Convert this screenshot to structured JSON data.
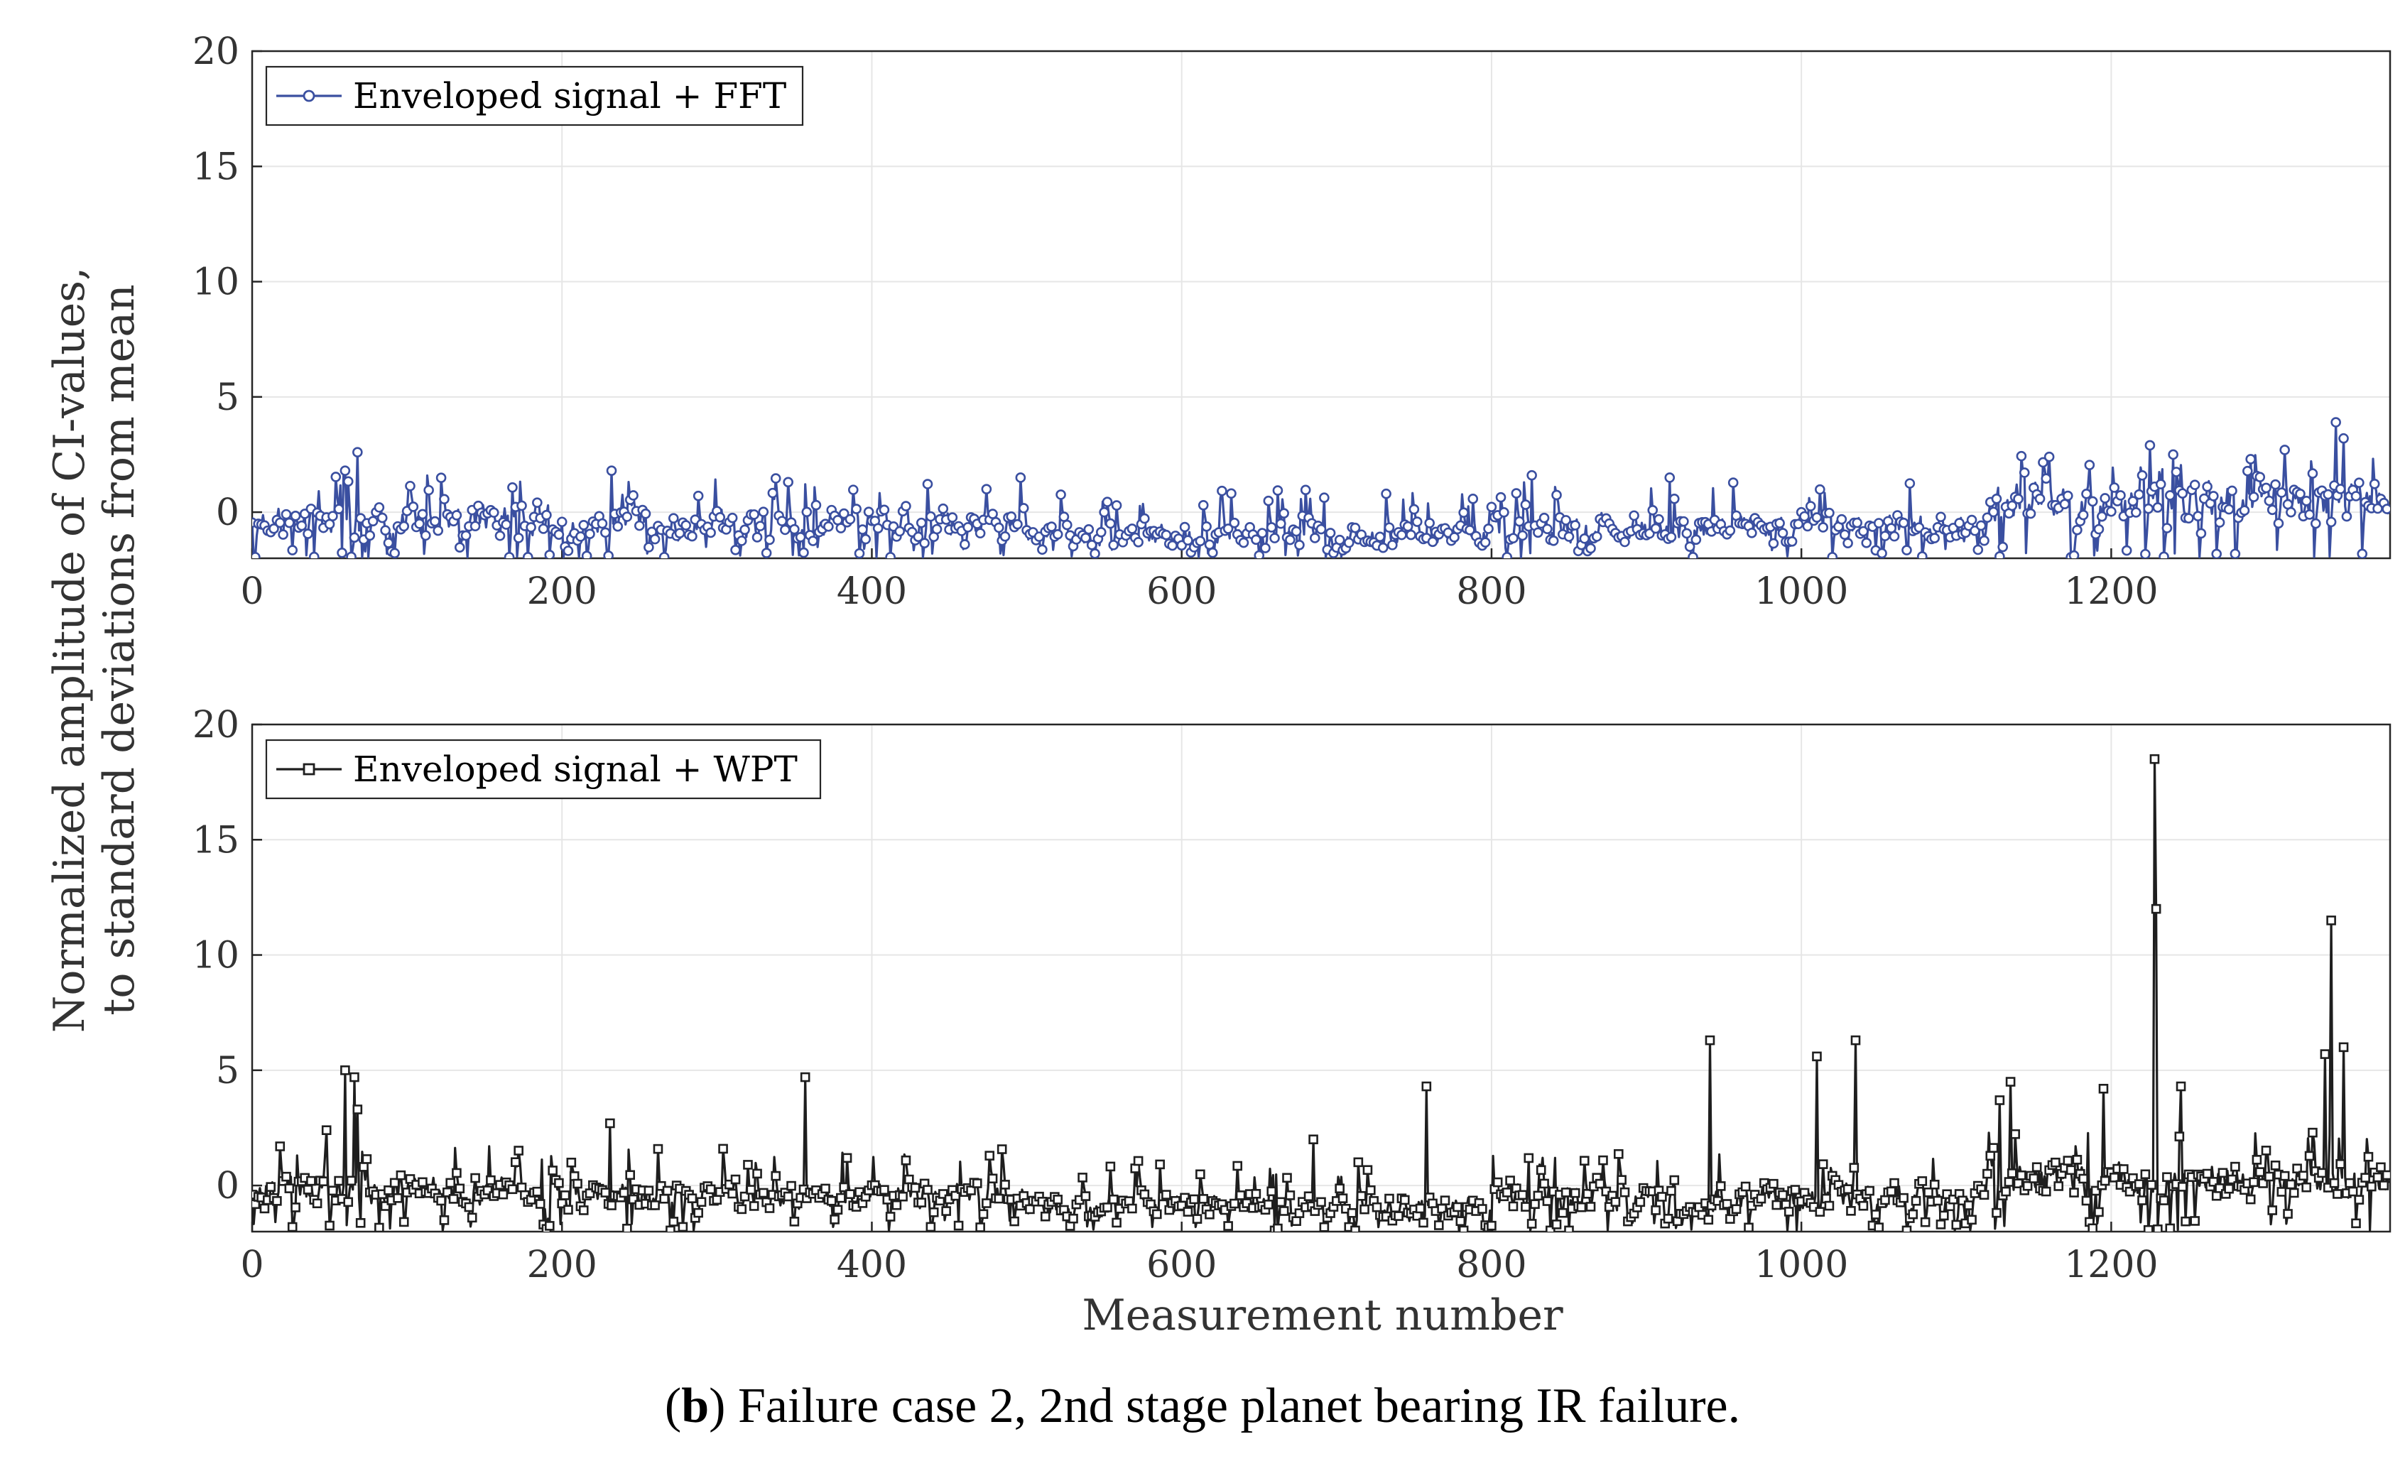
{
  "figure": {
    "ylabel_line1": "Normalized amplitude of CI-values,",
    "ylabel_line2": "to standard deviations from mean",
    "xlabel": "Measurement number",
    "caption_letter": "b",
    "caption_open": "(",
    "caption_rest": ") Failure case 2, 2nd stage planet bearing IR failure."
  },
  "chart_data": [
    {
      "type": "line",
      "series_name": "Enveloped signal + FFT",
      "color": "#3a4fa0",
      "marker": "circle",
      "xlim": [
        0,
        1380
      ],
      "ylim": [
        -2,
        20
      ],
      "xticks": [
        0,
        200,
        400,
        600,
        800,
        1000,
        1200
      ],
      "yticks": [
        0,
        5,
        10,
        15,
        20
      ],
      "n_points": 1380,
      "seed": 7,
      "segments": [
        {
          "x": [
            0,
            200
          ],
          "base": -0.3,
          "spread": 1.0
        },
        {
          "x": [
            200,
            500
          ],
          "base": -0.5,
          "spread": 0.9
        },
        {
          "x": [
            500,
            800
          ],
          "base": -1.0,
          "spread": 0.7
        },
        {
          "x": [
            800,
            1120
          ],
          "base": -0.7,
          "spread": 0.9
        },
        {
          "x": [
            1120,
            1380
          ],
          "base": 0.5,
          "spread": 1.2
        }
      ],
      "peaks": [
        {
          "x": 68,
          "y": 2.6
        },
        {
          "x": 60,
          "y": 1.8
        },
        {
          "x": 232,
          "y": 1.8
        },
        {
          "x": 826,
          "y": 1.6
        },
        {
          "x": 915,
          "y": 1.5
        },
        {
          "x": 1160,
          "y": 2.4
        },
        {
          "x": 1225,
          "y": 2.9
        },
        {
          "x": 1312,
          "y": 2.7
        },
        {
          "x": 1345,
          "y": 3.9
        },
        {
          "x": 1350,
          "y": 3.2
        },
        {
          "x": 1240,
          "y": 2.5
        },
        {
          "x": 1290,
          "y": 2.3
        }
      ]
    },
    {
      "type": "line",
      "series_name": "Enveloped signal + WPT",
      "color": "#1e1e1e",
      "marker": "square",
      "xlim": [
        0,
        1380
      ],
      "ylim": [
        -2,
        20
      ],
      "xticks": [
        0,
        200,
        400,
        600,
        800,
        1000,
        1200
      ],
      "yticks": [
        0,
        5,
        10,
        15,
        20
      ],
      "n_points": 1380,
      "seed": 13,
      "segments": [
        {
          "x": [
            0,
            200
          ],
          "base": -0.2,
          "spread": 1.0
        },
        {
          "x": [
            200,
            500
          ],
          "base": -0.4,
          "spread": 0.9
        },
        {
          "x": [
            500,
            800
          ],
          "base": -0.9,
          "spread": 0.7
        },
        {
          "x": [
            800,
            1120
          ],
          "base": -0.5,
          "spread": 1.0
        },
        {
          "x": [
            1120,
            1380
          ],
          "base": 0.3,
          "spread": 1.3
        }
      ],
      "peaks": [
        {
          "x": 60,
          "y": 5.0
        },
        {
          "x": 66,
          "y": 4.7
        },
        {
          "x": 68,
          "y": 3.3
        },
        {
          "x": 48,
          "y": 2.4
        },
        {
          "x": 231,
          "y": 2.7
        },
        {
          "x": 357,
          "y": 4.7
        },
        {
          "x": 758,
          "y": 4.3
        },
        {
          "x": 685,
          "y": 2.0
        },
        {
          "x": 941,
          "y": 6.3
        },
        {
          "x": 1010,
          "y": 5.6
        },
        {
          "x": 1035,
          "y": 6.3
        },
        {
          "x": 1128,
          "y": 3.7
        },
        {
          "x": 1135,
          "y": 4.5
        },
        {
          "x": 1228,
          "y": 18.5
        },
        {
          "x": 1229,
          "y": 12.0
        },
        {
          "x": 1245,
          "y": 4.3
        },
        {
          "x": 1195,
          "y": 4.2
        },
        {
          "x": 1342,
          "y": 11.5
        },
        {
          "x": 1338,
          "y": 5.7
        },
        {
          "x": 1350,
          "y": 6.0
        }
      ]
    }
  ]
}
